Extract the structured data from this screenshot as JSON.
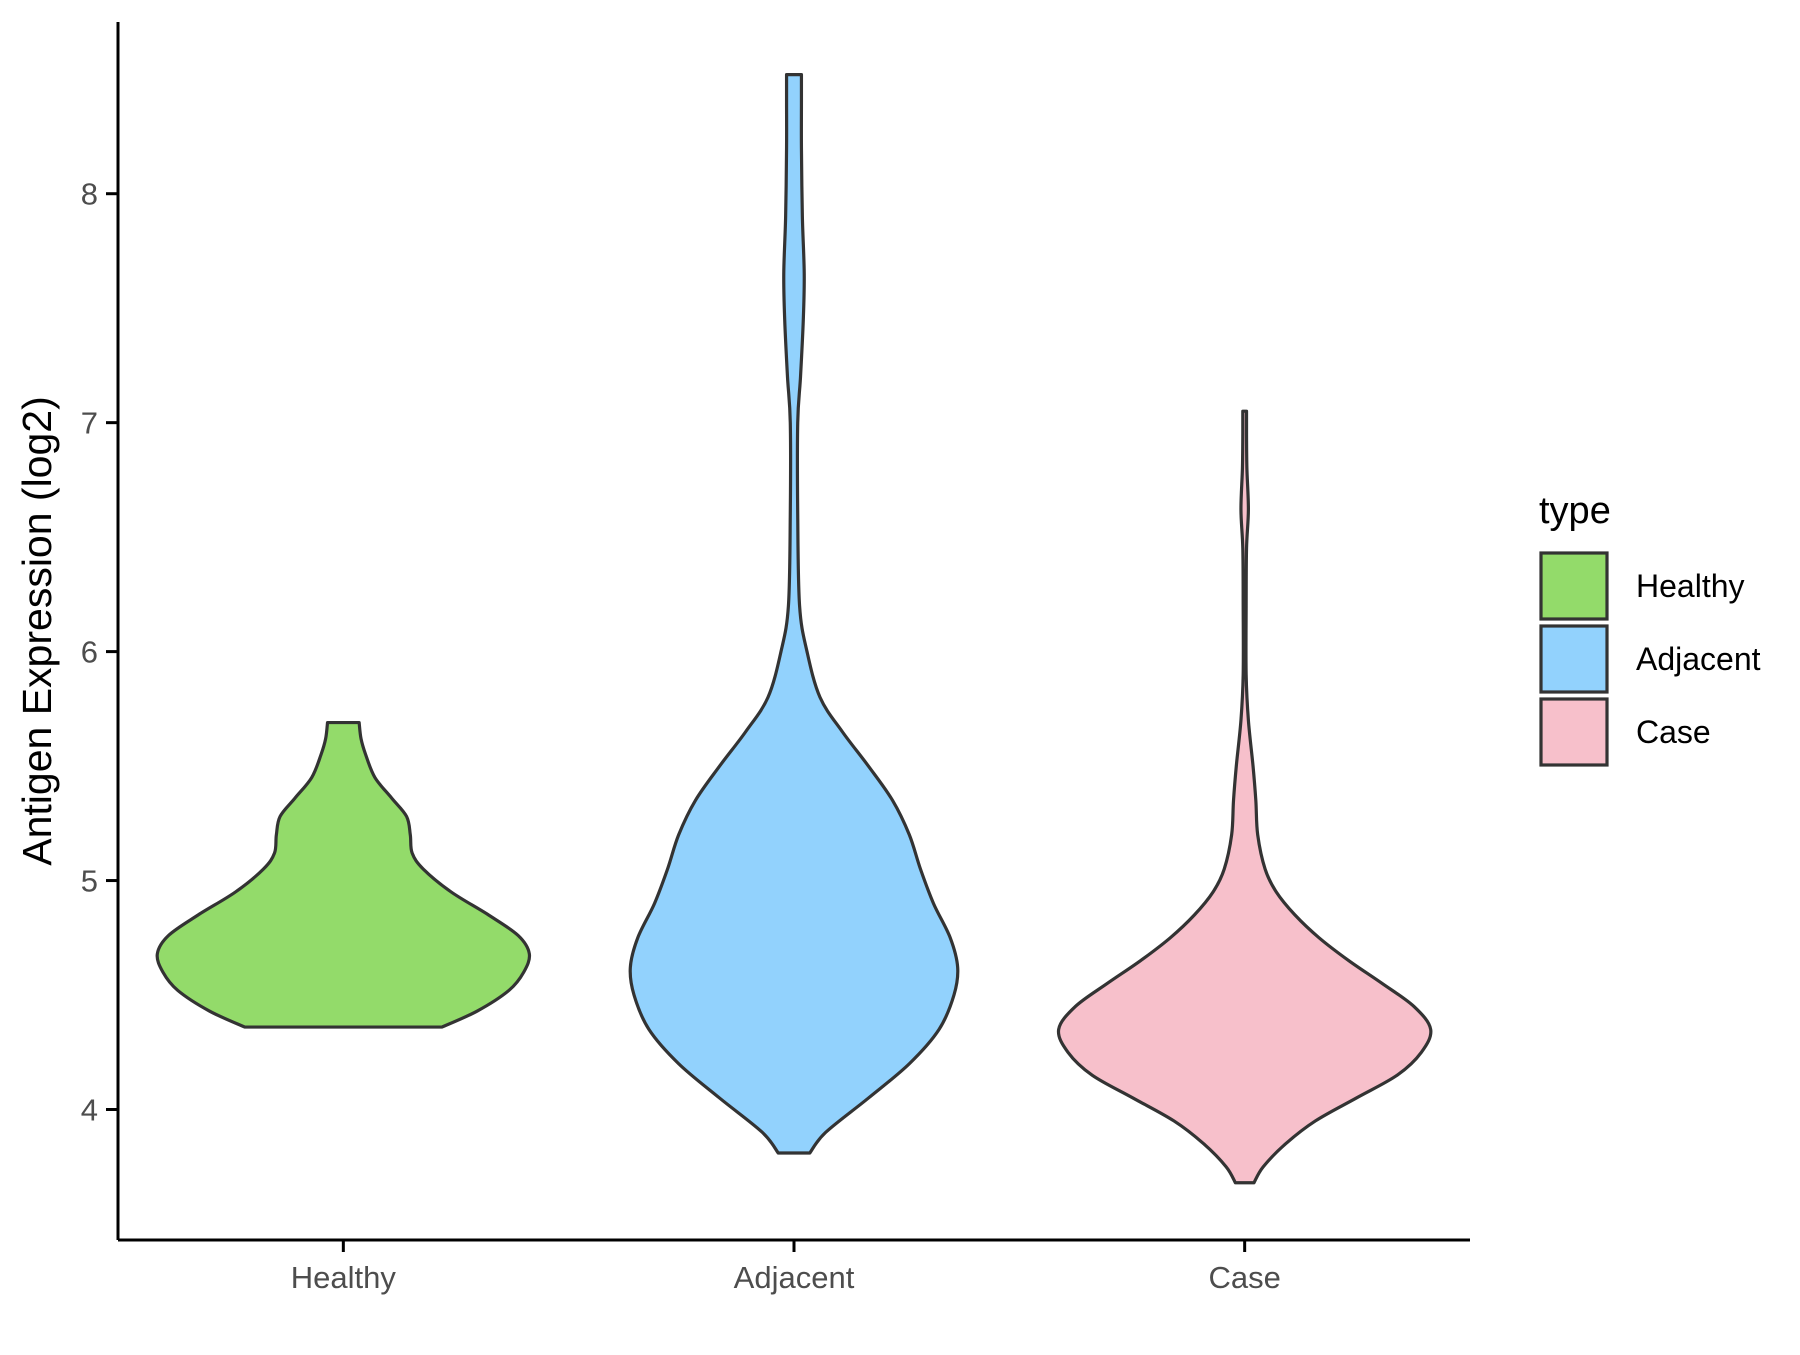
{
  "chart_data": {
    "type": "violin",
    "title": "",
    "xlabel": "",
    "ylabel": "Antigen Expression (log2)",
    "categories": [
      "Healthy",
      "Adjacent",
      "Case"
    ],
    "ylim": [
      3.43,
      8.75
    ],
    "yticks": [
      4,
      5,
      6,
      7,
      8
    ],
    "ytick_labels": [
      "4",
      "5",
      "6",
      "7",
      "8"
    ],
    "grid": false,
    "legend": {
      "title": "type",
      "position": "right",
      "items": [
        {
          "label": "Healthy",
          "color": "#93DB6A"
        },
        {
          "label": "Adjacent",
          "color": "#92D2FD"
        },
        {
          "label": "Case",
          "color": "#F7C0CB"
        }
      ]
    },
    "series": [
      {
        "name": "Healthy",
        "color": "#93DB6A",
        "min": 4.36,
        "max": 5.69,
        "density_profile": [
          [
            4.36,
            0.53
          ],
          [
            4.43,
            0.72
          ],
          [
            4.52,
            0.89
          ],
          [
            4.6,
            0.97
          ],
          [
            4.68,
            1.0
          ],
          [
            4.76,
            0.94
          ],
          [
            4.85,
            0.78
          ],
          [
            4.95,
            0.58
          ],
          [
            5.05,
            0.43
          ],
          [
            5.12,
            0.37
          ],
          [
            5.2,
            0.36
          ],
          [
            5.28,
            0.34
          ],
          [
            5.36,
            0.26
          ],
          [
            5.45,
            0.17
          ],
          [
            5.55,
            0.12
          ],
          [
            5.62,
            0.095
          ],
          [
            5.69,
            0.085
          ]
        ]
      },
      {
        "name": "Adjacent",
        "color": "#92D2FD",
        "min": 3.81,
        "max": 8.52,
        "density_profile": [
          [
            3.81,
            0.085
          ],
          [
            3.9,
            0.17
          ],
          [
            4.05,
            0.4
          ],
          [
            4.2,
            0.62
          ],
          [
            4.35,
            0.78
          ],
          [
            4.5,
            0.86
          ],
          [
            4.62,
            0.88
          ],
          [
            4.75,
            0.84
          ],
          [
            4.9,
            0.75
          ],
          [
            5.05,
            0.68
          ],
          [
            5.2,
            0.62
          ],
          [
            5.35,
            0.53
          ],
          [
            5.5,
            0.4
          ],
          [
            5.65,
            0.26
          ],
          [
            5.8,
            0.14
          ],
          [
            6.0,
            0.07
          ],
          [
            6.2,
            0.03
          ],
          [
            6.6,
            0.02
          ],
          [
            7.0,
            0.02
          ],
          [
            7.2,
            0.035
          ],
          [
            7.45,
            0.05
          ],
          [
            7.65,
            0.055
          ],
          [
            7.9,
            0.045
          ],
          [
            8.2,
            0.04
          ],
          [
            8.4,
            0.04
          ],
          [
            8.52,
            0.04
          ]
        ]
      },
      {
        "name": "Case",
        "color": "#F7C0CB",
        "min": 3.68,
        "max": 7.05,
        "density_profile": [
          [
            3.68,
            0.05
          ],
          [
            3.75,
            0.1
          ],
          [
            3.85,
            0.22
          ],
          [
            3.95,
            0.38
          ],
          [
            4.05,
            0.6
          ],
          [
            4.15,
            0.82
          ],
          [
            4.25,
            0.95
          ],
          [
            4.35,
            1.0
          ],
          [
            4.45,
            0.91
          ],
          [
            4.55,
            0.74
          ],
          [
            4.65,
            0.56
          ],
          [
            4.75,
            0.4
          ],
          [
            4.85,
            0.27
          ],
          [
            4.95,
            0.17
          ],
          [
            5.05,
            0.11
          ],
          [
            5.2,
            0.07
          ],
          [
            5.35,
            0.06
          ],
          [
            5.5,
            0.045
          ],
          [
            5.7,
            0.02
          ],
          [
            5.9,
            0.008
          ],
          [
            6.2,
            0.008
          ],
          [
            6.45,
            0.01
          ],
          [
            6.62,
            0.02
          ],
          [
            6.8,
            0.012
          ],
          [
            6.95,
            0.01
          ],
          [
            7.05,
            0.01
          ]
        ]
      }
    ]
  }
}
